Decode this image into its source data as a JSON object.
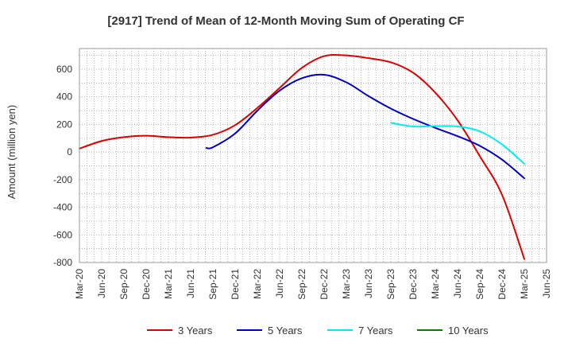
{
  "chart_data": {
    "type": "line",
    "title": "[2917]  Trend of Mean of 12-Month Moving Sum of Operating CF",
    "xlabel": "",
    "ylabel": "Amount (million yen)",
    "ylim": [
      -800,
      750
    ],
    "yticks": [
      600,
      400,
      200,
      0,
      -200,
      -400,
      -600,
      -800
    ],
    "x_categories": [
      "Mar-20",
      "Jun-20",
      "Sep-20",
      "Dec-20",
      "Mar-21",
      "Jun-21",
      "Sep-21",
      "Dec-21",
      "Mar-22",
      "Jun-22",
      "Sep-22",
      "Dec-22",
      "Mar-23",
      "Jun-23",
      "Sep-23",
      "Dec-23",
      "Mar-24",
      "Jun-24",
      "Sep-24",
      "Dec-24",
      "Mar-25",
      "Jun-25"
    ],
    "grid": true,
    "legend_position": "bottom",
    "series": [
      {
        "name": "3 Years",
        "color": "#e00000",
        "points": [
          [
            0,
            25
          ],
          [
            1,
            80
          ],
          [
            2,
            108
          ],
          [
            3,
            118
          ],
          [
            4,
            108
          ],
          [
            5,
            105
          ],
          [
            6,
            125
          ],
          [
            7,
            195
          ],
          [
            8,
            320
          ],
          [
            9,
            465
          ],
          [
            10,
            610
          ],
          [
            11,
            695
          ],
          [
            12,
            700
          ],
          [
            13,
            680
          ],
          [
            14,
            650
          ],
          [
            15,
            575
          ],
          [
            16,
            430
          ],
          [
            17,
            230
          ],
          [
            18,
            -30
          ],
          [
            19,
            -310
          ],
          [
            20,
            -775
          ]
        ]
      },
      {
        "name": "5 Years",
        "color": "#0000cc",
        "points": [
          [
            5.7,
            30
          ],
          [
            6,
            35
          ],
          [
            7,
            135
          ],
          [
            8,
            300
          ],
          [
            9,
            445
          ],
          [
            10,
            535
          ],
          [
            11,
            560
          ],
          [
            12,
            505
          ],
          [
            13,
            405
          ],
          [
            14,
            315
          ],
          [
            15,
            240
          ],
          [
            16,
            175
          ],
          [
            17,
            115
          ],
          [
            18,
            45
          ],
          [
            19,
            -55
          ],
          [
            20,
            -190
          ]
        ]
      },
      {
        "name": "7 Years",
        "color": "#00eeee",
        "points": [
          [
            14,
            212
          ],
          [
            15,
            185
          ],
          [
            16,
            188
          ],
          [
            17,
            185
          ],
          [
            18,
            150
          ],
          [
            19,
            55
          ],
          [
            20,
            -85
          ]
        ]
      },
      {
        "name": "10 Years",
        "color": "#008000",
        "points": []
      }
    ]
  }
}
